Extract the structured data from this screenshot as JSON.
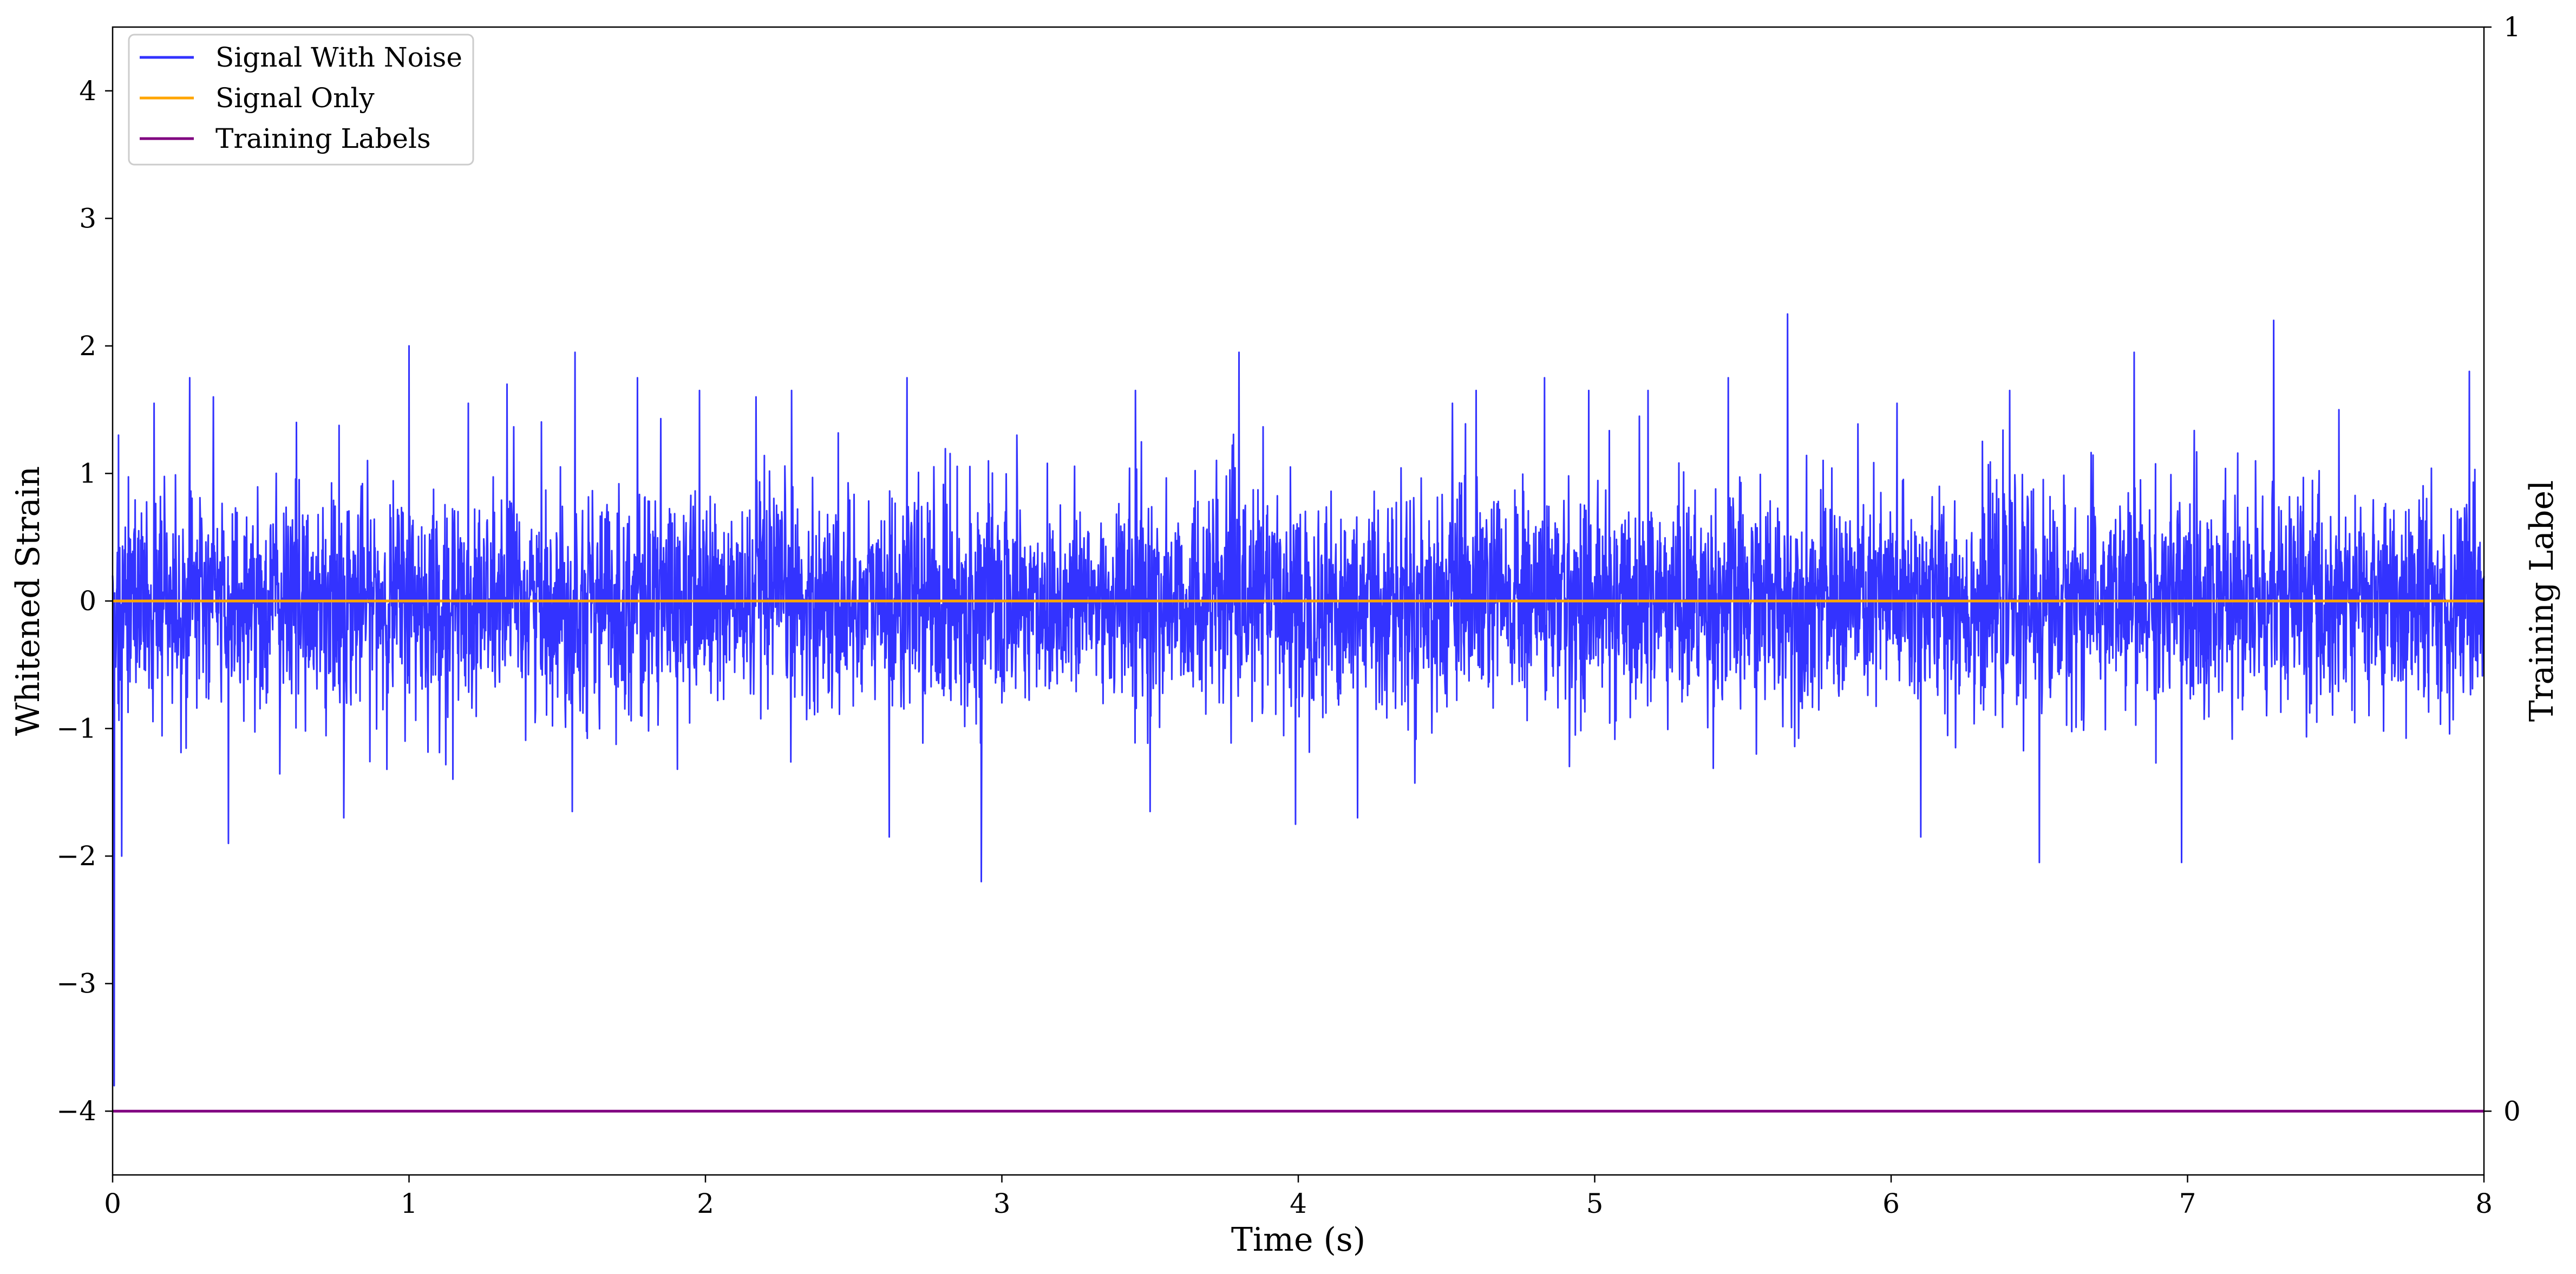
{
  "chart_data": {
    "type": "line",
    "title": "",
    "xlabel": "Time (s)",
    "ylabel": "Whitened Strain",
    "ylabel_right": "Training Label",
    "xlim": [
      0,
      8
    ],
    "ylim": [
      -4.5,
      4.5
    ],
    "ylim_right": [
      -0.0588,
      1
    ],
    "x_ticks": [
      0,
      1,
      2,
      3,
      4,
      5,
      6,
      7,
      8
    ],
    "x_tick_labels": [
      "0",
      "1",
      "2",
      "3",
      "4",
      "5",
      "6",
      "7",
      "8"
    ],
    "y_ticks": [
      -4,
      -3,
      -2,
      -1,
      0,
      1,
      2,
      3,
      4
    ],
    "y_tick_labels": [
      "−4",
      "−3",
      "−2",
      "−1",
      "0",
      "1",
      "2",
      "3",
      "4"
    ],
    "y_right_ticks": [
      0,
      1
    ],
    "y_right_tick_labels": [
      "0",
      "1"
    ],
    "grid": false,
    "legend_position": "top-left",
    "series": [
      {
        "name": "Signal With Noise",
        "color": "#3333ff",
        "axis": "left",
        "description": "whitened noise around 0, amplitude mostly within ±1.5, sparse peaks",
        "peaks": [
          [
            0.005,
            -3.8
          ],
          [
            0.02,
            1.3
          ],
          [
            0.03,
            -2.0
          ],
          [
            0.14,
            1.55
          ],
          [
            0.26,
            1.75
          ],
          [
            0.34,
            1.6
          ],
          [
            0.39,
            -1.9
          ],
          [
            0.62,
            1.4
          ],
          [
            0.78,
            -1.7
          ],
          [
            1.0,
            2.0
          ],
          [
            1.2,
            1.55
          ],
          [
            1.33,
            1.7
          ],
          [
            1.56,
            1.95
          ],
          [
            1.55,
            -1.65
          ],
          [
            1.77,
            1.75
          ],
          [
            1.98,
            1.65
          ],
          [
            2.17,
            1.6
          ],
          [
            2.29,
            1.65
          ],
          [
            2.62,
            -1.85
          ],
          [
            2.68,
            1.75
          ],
          [
            2.93,
            -2.2
          ],
          [
            3.05,
            1.3
          ],
          [
            3.45,
            1.65
          ],
          [
            3.5,
            -1.65
          ],
          [
            3.8,
            1.95
          ],
          [
            3.99,
            -1.75
          ],
          [
            4.2,
            -1.7
          ],
          [
            4.52,
            1.55
          ],
          [
            4.6,
            1.65
          ],
          [
            4.83,
            1.75
          ],
          [
            4.98,
            1.65
          ],
          [
            5.18,
            1.65
          ],
          [
            5.45,
            1.75
          ],
          [
            5.65,
            2.25
          ],
          [
            6.02,
            1.55
          ],
          [
            6.1,
            -1.85
          ],
          [
            6.4,
            1.65
          ],
          [
            6.5,
            -2.05
          ],
          [
            6.82,
            1.95
          ],
          [
            6.98,
            -2.05
          ],
          [
            7.29,
            2.2
          ],
          [
            7.51,
            1.5
          ],
          [
            7.95,
            1.8
          ]
        ]
      },
      {
        "name": "Signal Only",
        "color": "#ffa500",
        "axis": "left",
        "x": [
          0,
          8
        ],
        "y": [
          0,
          0
        ]
      },
      {
        "name": "Training Labels",
        "color": "#800080",
        "axis": "right",
        "x": [
          0,
          8
        ],
        "y": [
          0,
          0
        ]
      }
    ]
  }
}
